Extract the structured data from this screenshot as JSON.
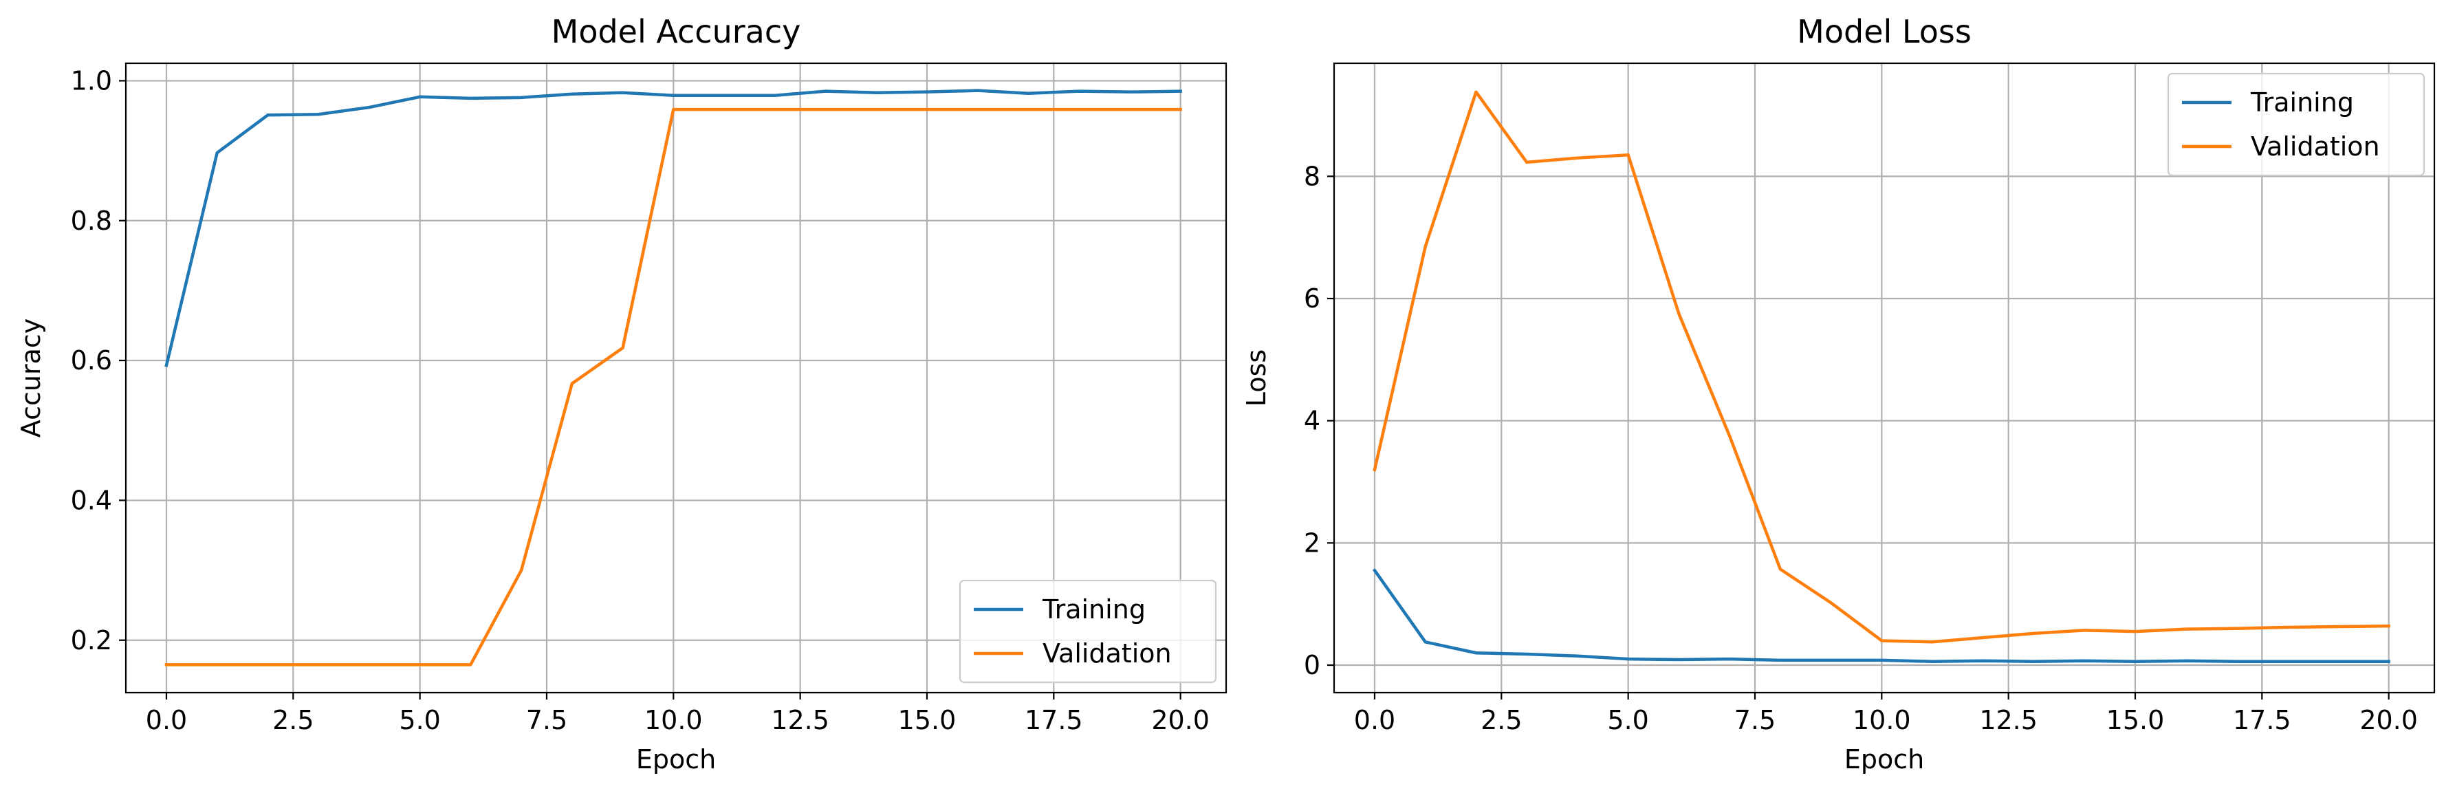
{
  "chart_data": [
    {
      "type": "line",
      "title": "Model Accuracy",
      "xlabel": "Epoch",
      "ylabel": "Accuracy",
      "xlim": [
        -0.8,
        20.9
      ],
      "ylim": [
        0.125,
        1.025
      ],
      "xticks": [
        0,
        2.5,
        5,
        7.5,
        10,
        12.5,
        15,
        17.5,
        20
      ],
      "xtick_labels": [
        "0.0",
        "2.5",
        "5.0",
        "7.5",
        "10.0",
        "12.5",
        "15.0",
        "17.5",
        "20.0"
      ],
      "yticks": [
        0.2,
        0.4,
        0.6,
        0.8,
        1.0
      ],
      "ytick_labels": [
        "0.2",
        "0.4",
        "0.6",
        "0.8",
        "1.0"
      ],
      "grid": true,
      "legend_position": "lower-right",
      "x": [
        0,
        1,
        2,
        3,
        4,
        5,
        6,
        7,
        8,
        9,
        10,
        11,
        12,
        13,
        14,
        15,
        16,
        17,
        18,
        19,
        20
      ],
      "series": [
        {
          "name": "Training",
          "color": "#1f77b4",
          "values": [
            0.593,
            0.897,
            0.951,
            0.952,
            0.962,
            0.977,
            0.975,
            0.976,
            0.981,
            0.983,
            0.979,
            0.979,
            0.979,
            0.985,
            0.983,
            0.984,
            0.986,
            0.982,
            0.985,
            0.984,
            0.985
          ]
        },
        {
          "name": "Validation",
          "color": "#ff7f0e",
          "values": [
            0.165,
            0.165,
            0.165,
            0.165,
            0.165,
            0.165,
            0.165,
            0.3,
            0.567,
            0.618,
            0.959,
            0.959,
            0.959,
            0.959,
            0.959,
            0.959,
            0.959,
            0.959,
            0.959,
            0.959,
            0.959
          ]
        }
      ]
    },
    {
      "type": "line",
      "title": "Model Loss",
      "xlabel": "Epoch",
      "ylabel": "Loss",
      "xlim": [
        -0.8,
        20.9
      ],
      "ylim": [
        -0.45,
        9.85
      ],
      "xticks": [
        0,
        2.5,
        5,
        7.5,
        10,
        12.5,
        15,
        17.5,
        20
      ],
      "xtick_labels": [
        "0.0",
        "2.5",
        "5.0",
        "7.5",
        "10.0",
        "12.5",
        "15.0",
        "17.5",
        "20.0"
      ],
      "yticks": [
        0,
        2,
        4,
        6,
        8
      ],
      "ytick_labels": [
        "0",
        "2",
        "4",
        "6",
        "8"
      ],
      "grid": true,
      "legend_position": "upper-right",
      "x": [
        0,
        1,
        2,
        3,
        4,
        5,
        6,
        7,
        8,
        9,
        10,
        11,
        12,
        13,
        14,
        15,
        16,
        17,
        18,
        19,
        20
      ],
      "series": [
        {
          "name": "Training",
          "color": "#1f77b4",
          "values": [
            1.55,
            0.38,
            0.2,
            0.18,
            0.15,
            0.1,
            0.09,
            0.1,
            0.08,
            0.08,
            0.08,
            0.06,
            0.07,
            0.06,
            0.07,
            0.06,
            0.07,
            0.06,
            0.06,
            0.06,
            0.06
          ]
        },
        {
          "name": "Validation",
          "color": "#ff7f0e",
          "values": [
            3.2,
            6.85,
            9.38,
            8.23,
            8.3,
            8.35,
            5.75,
            3.75,
            1.57,
            1.02,
            0.4,
            0.38,
            0.45,
            0.52,
            0.57,
            0.55,
            0.59,
            0.6,
            0.62,
            0.63,
            0.64
          ]
        }
      ]
    }
  ]
}
